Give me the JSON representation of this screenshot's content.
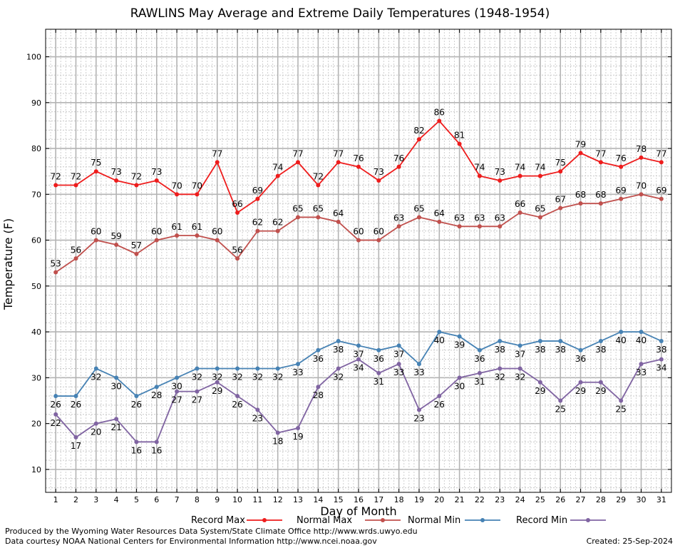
{
  "chart_data": {
    "type": "line",
    "title": "RAWLINS May Average and Extreme Daily Temperatures (1948-1954)",
    "xlabel": "Day of Month",
    "ylabel": "Temperature (F)",
    "x": [
      1,
      2,
      3,
      4,
      5,
      6,
      7,
      8,
      9,
      10,
      11,
      12,
      13,
      14,
      15,
      16,
      17,
      18,
      19,
      20,
      21,
      22,
      23,
      24,
      25,
      26,
      27,
      28,
      29,
      30,
      31
    ],
    "xlim": [
      0.5,
      31.5
    ],
    "ylim": [
      5,
      106
    ],
    "yticks": [
      10,
      20,
      30,
      40,
      50,
      60,
      70,
      80,
      90,
      100
    ],
    "grid": true,
    "legend_position": "bottom",
    "series": [
      {
        "name": "Record Max",
        "color": "#ee1c1c",
        "values": [
          72,
          72,
          75,
          73,
          72,
          73,
          70,
          70,
          77,
          66,
          69,
          74,
          77,
          72,
          77,
          76,
          73,
          76,
          82,
          86,
          81,
          74,
          73,
          74,
          74,
          75,
          79,
          77,
          76,
          78,
          77
        ]
      },
      {
        "name": "Normal Max",
        "color": "#c0504d",
        "values": [
          53,
          56,
          60,
          59,
          57,
          60,
          61,
          61,
          60,
          56,
          62,
          62,
          65,
          65,
          64,
          60,
          60,
          63,
          65,
          64,
          63,
          63,
          63,
          66,
          65,
          67,
          68,
          68,
          69,
          70,
          69
        ]
      },
      {
        "name": "Normal Min",
        "color": "#4682b4",
        "values": [
          26,
          26,
          32,
          30,
          26,
          28,
          30,
          32,
          32,
          32,
          32,
          32,
          33,
          36,
          38,
          37,
          36,
          37,
          33,
          40,
          39,
          36,
          38,
          37,
          38,
          38,
          36,
          38,
          40,
          40,
          38
        ]
      },
      {
        "name": "Record Min",
        "color": "#8064a2",
        "values": [
          22,
          17,
          20,
          21,
          16,
          16,
          27,
          27,
          29,
          26,
          23,
          18,
          19,
          28,
          32,
          34,
          31,
          33,
          23,
          26,
          30,
          31,
          32,
          32,
          29,
          25,
          29,
          29,
          25,
          33,
          34
        ]
      }
    ]
  },
  "credits": {
    "produced_by": "Produced by the Wyoming Water Resources Data System/State Climate Office http://www.wrds.uwyo.edu",
    "data_courtesy": "Data courtesy NOAA National Centers for Environmental Information http://www.ncei.noaa.gov",
    "created": "Created:  25-Sep-2024"
  }
}
